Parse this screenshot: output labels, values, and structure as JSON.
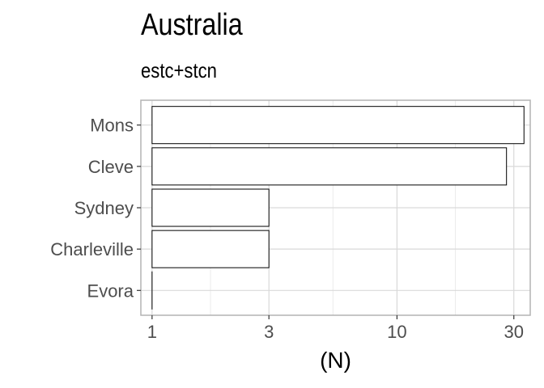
{
  "chart_data": {
    "type": "bar",
    "orientation": "horizontal",
    "title": "Australia",
    "subtitle": "estc+stcn",
    "xlabel": "(N)",
    "ylabel": "",
    "x_scale": "log10",
    "xlim": [
      0.9,
      35
    ],
    "x_ticks": [
      1,
      3,
      10,
      30
    ],
    "x_tick_labels": [
      "1",
      "3",
      "10",
      "30"
    ],
    "categories": [
      "Mons",
      "Cleve",
      "Sydney",
      "Charleville",
      "Evora"
    ],
    "values": [
      33,
      28,
      3,
      3,
      1
    ],
    "grid": true,
    "legend": "none",
    "colors": {
      "bar_fill": "#ffffff",
      "bar_stroke": "#000000",
      "grid_major": "#d9d9d9",
      "grid_minor": "#ebebeb",
      "panel_border": "#b3b3b3",
      "tick_text": "#4d4d4d"
    }
  }
}
